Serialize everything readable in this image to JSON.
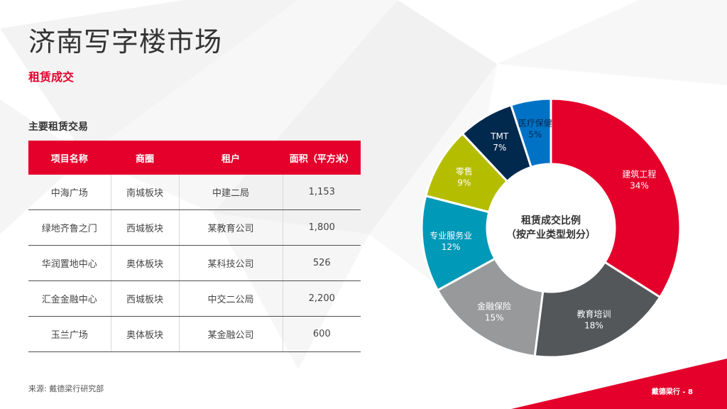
{
  "page": {
    "title": "济南写字楼市场",
    "section": "租赁成交",
    "source": "来源: 戴德梁行研究部",
    "footer": "戴德梁行 - 8"
  },
  "table": {
    "title": "主要租赁交易",
    "headers": [
      "项目名称",
      "商圈",
      "租户",
      "面积（平方米）"
    ],
    "rows": [
      [
        "中海广场",
        "南城板块",
        "中建二局",
        "1,153"
      ],
      [
        "绿地齐鲁之门",
        "西城板块",
        "某教育公司",
        "1,800"
      ],
      [
        "华润置地中心",
        "奥体板块",
        "某科技公司",
        "526"
      ],
      [
        "汇金金融中心",
        "西城板块",
        "中交二公局",
        "2,200"
      ],
      [
        "玉兰广场",
        "奥体板块",
        "某金融公司",
        "600"
      ]
    ]
  },
  "chart_data": {
    "type": "pie",
    "title": "租赁成交比例\n（按产业类型划分）",
    "categories": [
      "建筑工程",
      "教育培训",
      "金融保险",
      "专业服务业",
      "零售",
      "TMT",
      "医疗保健"
    ],
    "values": [
      34,
      18,
      15,
      12,
      9,
      7,
      5
    ],
    "labels": [
      "34%",
      "18%",
      "15%",
      "12%",
      "9%",
      "7%",
      "5%"
    ],
    "colors": [
      "#e4002b",
      "#54575a",
      "#97999b",
      "#0099b8",
      "#b5bd00",
      "#00294d",
      "#0072c6"
    ],
    "label_colors": [
      "#ffffff",
      "#ffffff",
      "#ffffff",
      "#ffffff",
      "#ffffff",
      "#ffffff",
      "#00294d"
    ],
    "donut": true,
    "start_angle_deg": 0,
    "center_title_lines": [
      "租赁成交比例",
      "（按产业类型划分）"
    ]
  },
  "theme": {
    "accent": "#e4002b"
  }
}
